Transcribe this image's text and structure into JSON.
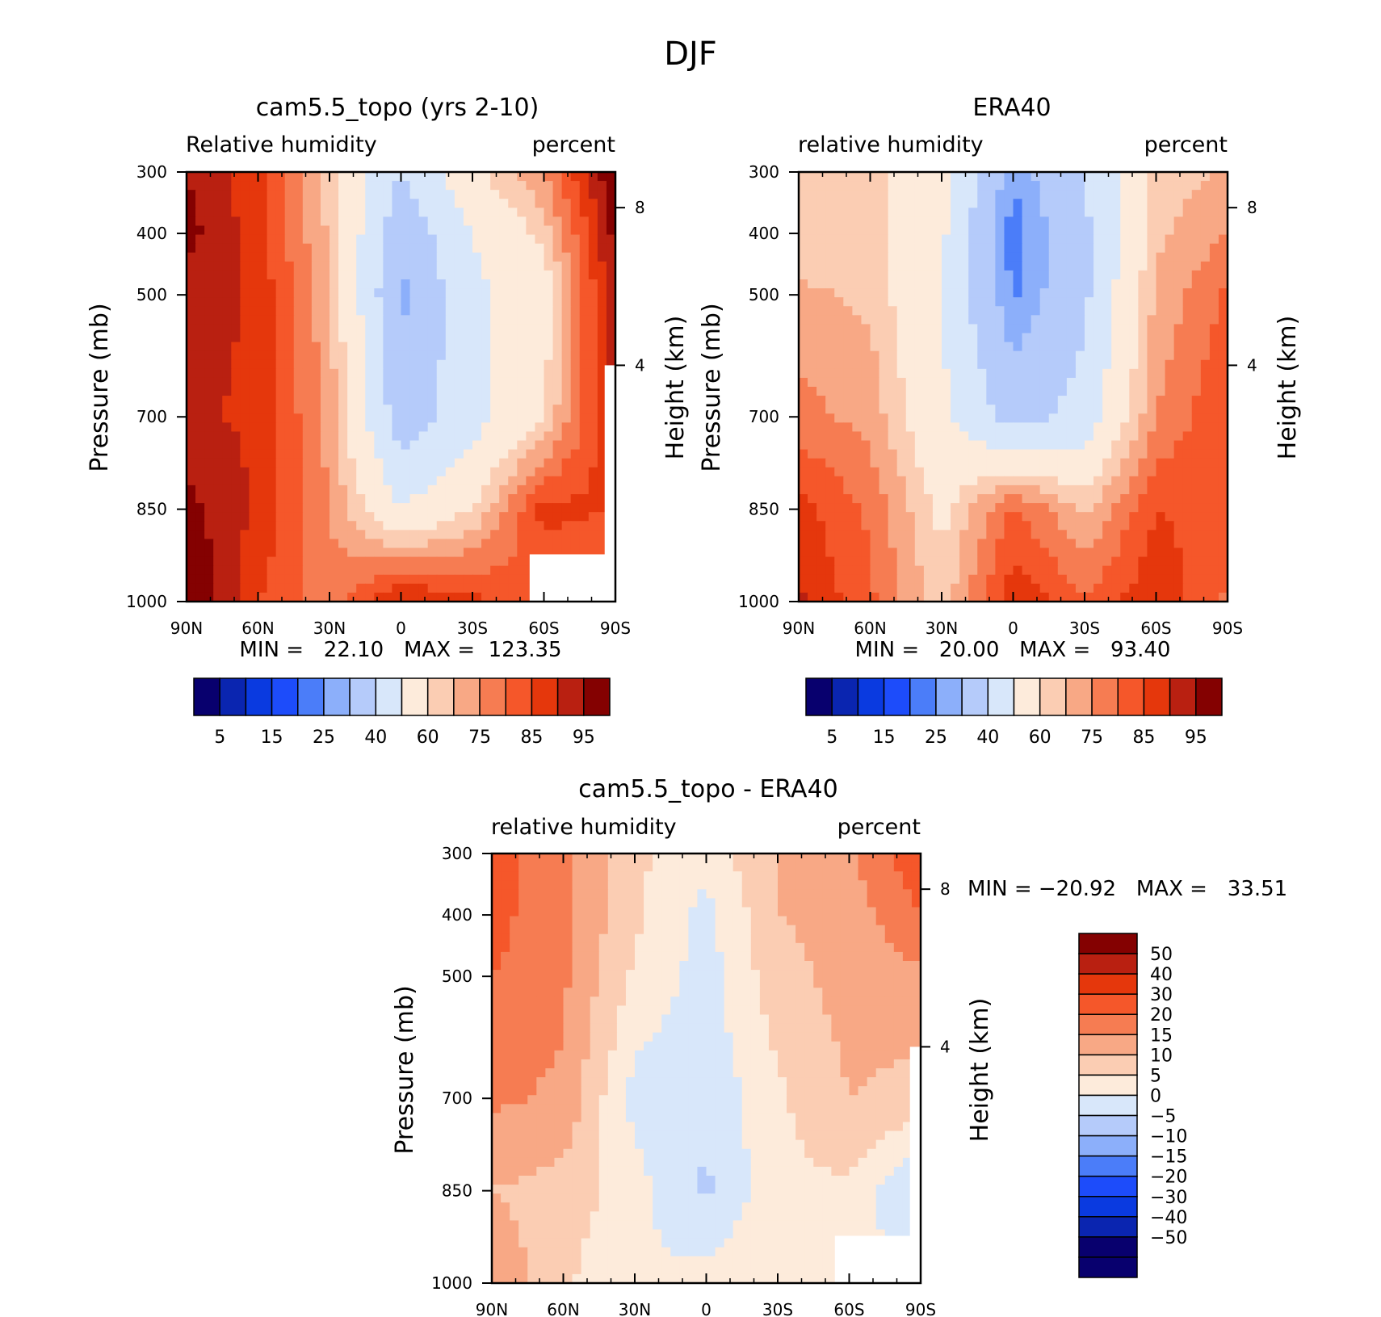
{
  "figure_title": "DJF",
  "colors": {
    "rh_palette": [
      "#08006e",
      "#0a25b0",
      "#0a3ae0",
      "#1d4cfa",
      "#4b7df9",
      "#8caffa",
      "#b5cbfa",
      "#d8e7fa",
      "#fdebdb",
      "#fbcdb3",
      "#f8a885",
      "#f67c52",
      "#f5572a",
      "#e5370c",
      "#b92011",
      "#840101"
    ],
    "diff_palette": [
      "#08006e",
      "#0a25b0",
      "#0a3ae0",
      "#1d4cfa",
      "#4b7df9",
      "#8caffa",
      "#b5cbfa",
      "#d8e7fa",
      "#fdebdb",
      "#fbcdb3",
      "#f8a885",
      "#f67c52",
      "#f5572a",
      "#e5370c",
      "#b92011",
      "#840101"
    ]
  },
  "panels": [
    {
      "title": "cam5.5_topo (yrs 2-10)",
      "left_label": "Relative humidity",
      "right_label": "percent",
      "minmax": "MIN =   22.10   MAX =  123.35",
      "colorbar_labels": [
        "5",
        "15",
        "25",
        "40",
        "60",
        "75",
        "85",
        "95"
      ]
    },
    {
      "title": "ERA40",
      "left_label": "relative humidity",
      "right_label": "percent",
      "minmax": "MIN =   20.00   MAX =   93.40",
      "colorbar_labels": [
        "5",
        "15",
        "25",
        "40",
        "60",
        "75",
        "85",
        "95"
      ]
    },
    {
      "title": "cam5.5_topo - ERA40",
      "left_label": "relative humidity",
      "right_label": "percent",
      "minmax": "MIN = −20.92   MAX =   33.51",
      "colorbar_labels": [
        "50",
        "40",
        "30",
        "20",
        "15",
        "10",
        "5",
        "0",
        "−5",
        "−10",
        "−15",
        "−20",
        "−30",
        "−40",
        "−50"
      ]
    }
  ],
  "chart_data": [
    {
      "type": "heatmap",
      "title": "cam5.5_topo (yrs 2-10)",
      "ylabel": "Pressure (mb)",
      "y2label": "Height (km)",
      "x_ticks": [
        "90N",
        "60N",
        "30N",
        "0",
        "30S",
        "60S",
        "90S"
      ],
      "y_ticks": [
        "300",
        "400",
        "500",
        "700",
        "850",
        "1000"
      ],
      "y2_ticks": [
        "8",
        "4"
      ],
      "x": [
        90,
        60,
        30,
        0,
        -30,
        -60,
        -90
      ],
      "y": [
        300,
        400,
        500,
        700,
        850,
        1000
      ],
      "contour_levels": [
        5,
        10,
        15,
        20,
        25,
        30,
        40,
        50,
        60,
        65,
        70,
        75,
        80,
        85,
        90,
        95
      ],
      "values": [
        [
          90,
          82,
          62,
          40,
          58,
          70,
          95
        ],
        [
          92,
          82,
          64,
          32,
          50,
          62,
          92
        ],
        [
          88,
          84,
          66,
          28,
          48,
          56,
          90
        ],
        [
          86,
          84,
          68,
          34,
          46,
          60,
          88
        ],
        [
          92,
          84,
          70,
          50,
          60,
          82,
          80
        ],
        [
          96,
          80,
          72,
          86,
          82,
          74,
          70
        ]
      ],
      "min": 22.1,
      "max": 123.35
    },
    {
      "type": "heatmap",
      "title": "ERA40",
      "ylabel": "Pressure (mb)",
      "y2label": "Height (km)",
      "x_ticks": [
        "90N",
        "60N",
        "30N",
        "0",
        "30S",
        "60S",
        "90S"
      ],
      "y_ticks": [
        "300",
        "400",
        "500",
        "700",
        "850",
        "1000"
      ],
      "y2_ticks": [
        "8",
        "4"
      ],
      "x": [
        90,
        60,
        30,
        0,
        -30,
        -60,
        -90
      ],
      "y": [
        300,
        400,
        500,
        700,
        850,
        1000
      ],
      "contour_levels": [
        5,
        10,
        15,
        20,
        25,
        30,
        40,
        50,
        60,
        65,
        70,
        75,
        80,
        85,
        90,
        95
      ],
      "values": [
        [
          62,
          62,
          54,
          26,
          40,
          62,
          66
        ],
        [
          62,
          62,
          52,
          22,
          38,
          64,
          70
        ],
        [
          66,
          64,
          50,
          24,
          38,
          66,
          76
        ],
        [
          72,
          68,
          52,
          36,
          44,
          70,
          80
        ],
        [
          82,
          74,
          58,
          76,
          64,
          80,
          78
        ],
        [
          86,
          76,
          62,
          84,
          76,
          84,
          74
        ]
      ],
      "min": 20.0,
      "max": 93.4
    },
    {
      "type": "heatmap",
      "title": "cam5.5_topo - ERA40",
      "ylabel": "Pressure (mb)",
      "y2label": "Height (km)",
      "x_ticks": [
        "90N",
        "60N",
        "30N",
        "0",
        "30S",
        "60S",
        "90S"
      ],
      "y_ticks": [
        "300",
        "400",
        "500",
        "700",
        "850",
        "1000"
      ],
      "y2_ticks": [
        "8",
        "4"
      ],
      "x": [
        90,
        60,
        30,
        0,
        -30,
        -60,
        -90
      ],
      "y": [
        300,
        400,
        500,
        700,
        850,
        1000
      ],
      "contour_levels": [
        -50,
        -40,
        -30,
        -20,
        -15,
        -10,
        -5,
        0,
        5,
        10,
        15,
        20,
        30,
        40,
        50
      ],
      "values": [
        [
          22,
          16,
          6,
          2,
          10,
          14,
          24
        ],
        [
          22,
          16,
          6,
          -2,
          10,
          12,
          20
        ],
        [
          20,
          16,
          4,
          -2,
          8,
          12,
          14
        ],
        [
          16,
          14,
          -2,
          -4,
          4,
          10,
          8
        ],
        [
          10,
          8,
          2,
          -6,
          4,
          4,
          -6
        ],
        [
          14,
          6,
          0,
          2,
          4,
          4,
          -4
        ]
      ],
      "min": -20.92,
      "max": 33.51
    }
  ]
}
